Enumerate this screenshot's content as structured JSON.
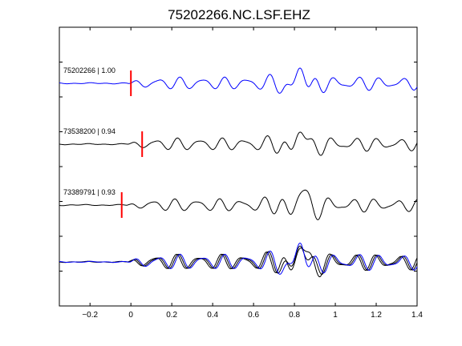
{
  "chart_data": {
    "type": "line",
    "title": "75202266.NC.LSF.EHZ",
    "xlabel": "",
    "ylabel": "",
    "xlim": [
      -0.35,
      1.4
    ],
    "x_ticks": [
      -0.2,
      0,
      0.2,
      0.4,
      0.6,
      0.8,
      1,
      1.2,
      1.4
    ],
    "x_tick_labels": [
      "−0.2",
      "0",
      "0.2",
      "0.4",
      "0.6",
      "0.8",
      "1",
      "1.2",
      "1.4"
    ],
    "y_ticks": [
      1,
      2,
      3,
      4,
      5,
      6,
      7
    ],
    "grid": false,
    "traces": [
      {
        "label": "75202266 | 1.00",
        "pick_time": 0.0,
        "color": "#0000ff",
        "offset": 1.0
      },
      {
        "label": "73538200 | 0.94",
        "pick_time": 0.055,
        "color": "#000000",
        "offset": 1.0
      },
      {
        "label": "73389791 | 0.93",
        "pick_time": -0.045,
        "color": "#000000",
        "offset": 1.0
      }
    ],
    "pick_color": "#ff0000",
    "stack_colors": [
      "#000000",
      "#000000",
      "#0000ff"
    ]
  }
}
